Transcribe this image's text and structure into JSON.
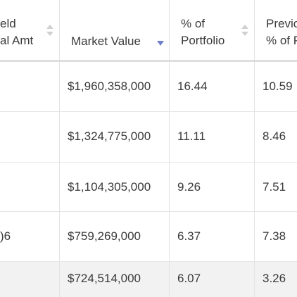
{
  "table": {
    "columns": [
      {
        "label_line1": "eld",
        "label_line2": "al Amt",
        "sort": "none"
      },
      {
        "label_line1": "Market Value",
        "label_line2": "",
        "sort": "descending"
      },
      {
        "label_line1": "% of",
        "label_line2": "Portfolio",
        "sort": "none"
      },
      {
        "label_line1": "Previc",
        "label_line2": "% of P",
        "sort": "none"
      }
    ],
    "rows": [
      {
        "col1": "",
        "market_value": "$1,960,358,000",
        "pct_portfolio": "16.44",
        "previous": "10.59"
      },
      {
        "col1": "",
        "market_value": "$1,324,775,000",
        "pct_portfolio": "11.11",
        "previous": "8.46"
      },
      {
        "col1": "",
        "market_value": "$1,104,305,000",
        "pct_portfolio": "9.26",
        "previous": "7.51"
      },
      {
        "col1": ")6",
        "market_value": "$759,269,000",
        "pct_portfolio": "6.37",
        "previous": "7.38"
      },
      {
        "col1": "",
        "market_value": "$724,514,000",
        "pct_portfolio": "6.07",
        "previous": "3.26"
      }
    ]
  },
  "colors": {
    "sort_active": "#6f7fd0",
    "sort_inactive": "#d0d0d0",
    "hover_row": "#f2f2f2",
    "grid": "#e3e3e3"
  }
}
